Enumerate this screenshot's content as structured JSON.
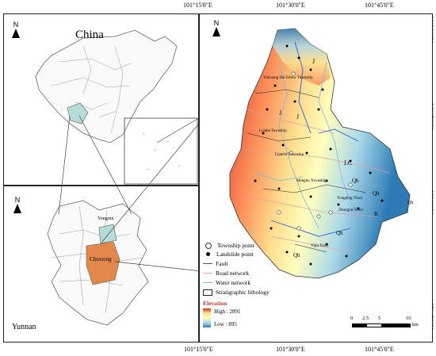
{
  "coords": {
    "top_x": [
      "101°15'0\"E",
      "101°30'0\"E",
      "101°45'0\"E"
    ],
    "bottom_x": [
      "101°15'0\"E",
      "101°30'0\"E",
      "101°45'0\"E"
    ],
    "right_y": [
      "26°30'0\"N",
      "26°15'0\"N",
      "26°0'0\"N",
      "25°45'0\"N"
    ]
  },
  "panels": {
    "china": {
      "title": "China",
      "north": "N"
    },
    "yunnan": {
      "title": "Yunnan",
      "north": "N",
      "city": "Yongren",
      "region": "Chuxiong"
    },
    "main": {
      "north": "N"
    }
  },
  "map_labels": {
    "labels": [
      "Yongding Town",
      "Yizhuang Dai Ethnic Township",
      "Lianchi Township",
      "Menghu Township",
      "Yijiu Town",
      "Zhongjiu Town",
      "Lianhe Township",
      "J",
      "J",
      "J",
      "LC",
      "Qh",
      "Qh",
      "Qh",
      "Qh",
      "R",
      "Qh"
    ]
  },
  "legend": {
    "items": [
      {
        "symbol": "township",
        "label": "Township point"
      },
      {
        "symbol": "landslide",
        "label": "Landslide point"
      },
      {
        "symbol": "fault",
        "label": "Fault"
      },
      {
        "symbol": "road",
        "label": "Road network"
      },
      {
        "symbol": "water",
        "label": "Water network"
      },
      {
        "symbol": "strat",
        "label": "Stratigraphic lithology"
      }
    ],
    "elevation_title": "Elevation",
    "high_label": "High : 2891",
    "low_label": "Low : 895"
  },
  "scalebar": {
    "ticks": [
      "0",
      "2.5",
      "5",
      "10"
    ],
    "unit": "km"
  },
  "colors": {
    "high": "#d7301f",
    "mid": "#ffffbf",
    "low": "#2c7bb6",
    "fault": "#2b5bd7",
    "road": "#e89aa3",
    "water": "#7fb3e0",
    "landslide": "#000000",
    "highlight": "#e07b39"
  }
}
